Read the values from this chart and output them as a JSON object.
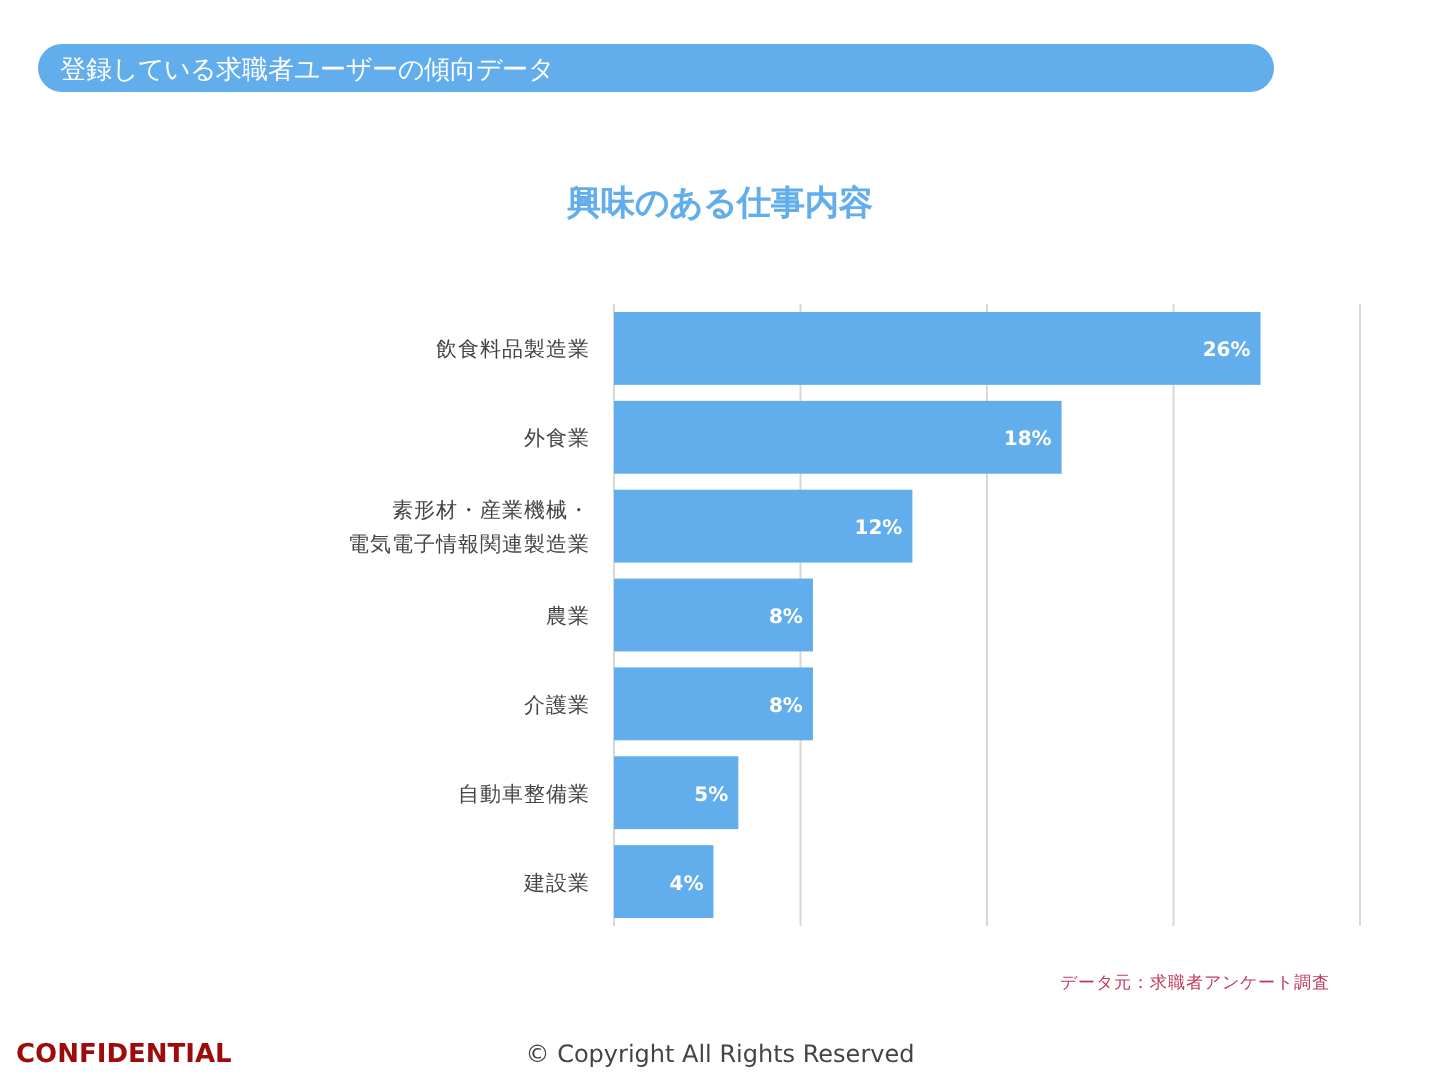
{
  "chart_data": {
    "type": "bar",
    "orientation": "horizontal",
    "subtitle": "登録している求職者ユーザーの傾向データ",
    "title": "興味のある仕事内容",
    "categories": [
      "飲食料品製造業",
      "外食業",
      "素形材・産業機械・電気電子情報関連製造業",
      "農業",
      "介護業",
      "自動車整備業",
      "建設業"
    ],
    "values": [
      26,
      18,
      12,
      8,
      8,
      5,
      4
    ],
    "value_labels": [
      "26%",
      "18%",
      "12%",
      "8%",
      "8%",
      "5%",
      "4%"
    ],
    "color": "#62adec",
    "xlim": [
      0,
      30
    ],
    "xticks": [
      {
        "value": 0,
        "label": null
      },
      {
        "value": 7.5,
        "label": null
      },
      {
        "value": 15,
        "label": null
      },
      {
        "value": 22.5,
        "label": null
      },
      {
        "value": 30,
        "label": null
      }
    ],
    "grid": "x",
    "annotations": [
      "データ元：求職者アンケート調査",
      "CONFIDENTIAL",
      "© Copyright All Rights Reserved"
    ]
  }
}
